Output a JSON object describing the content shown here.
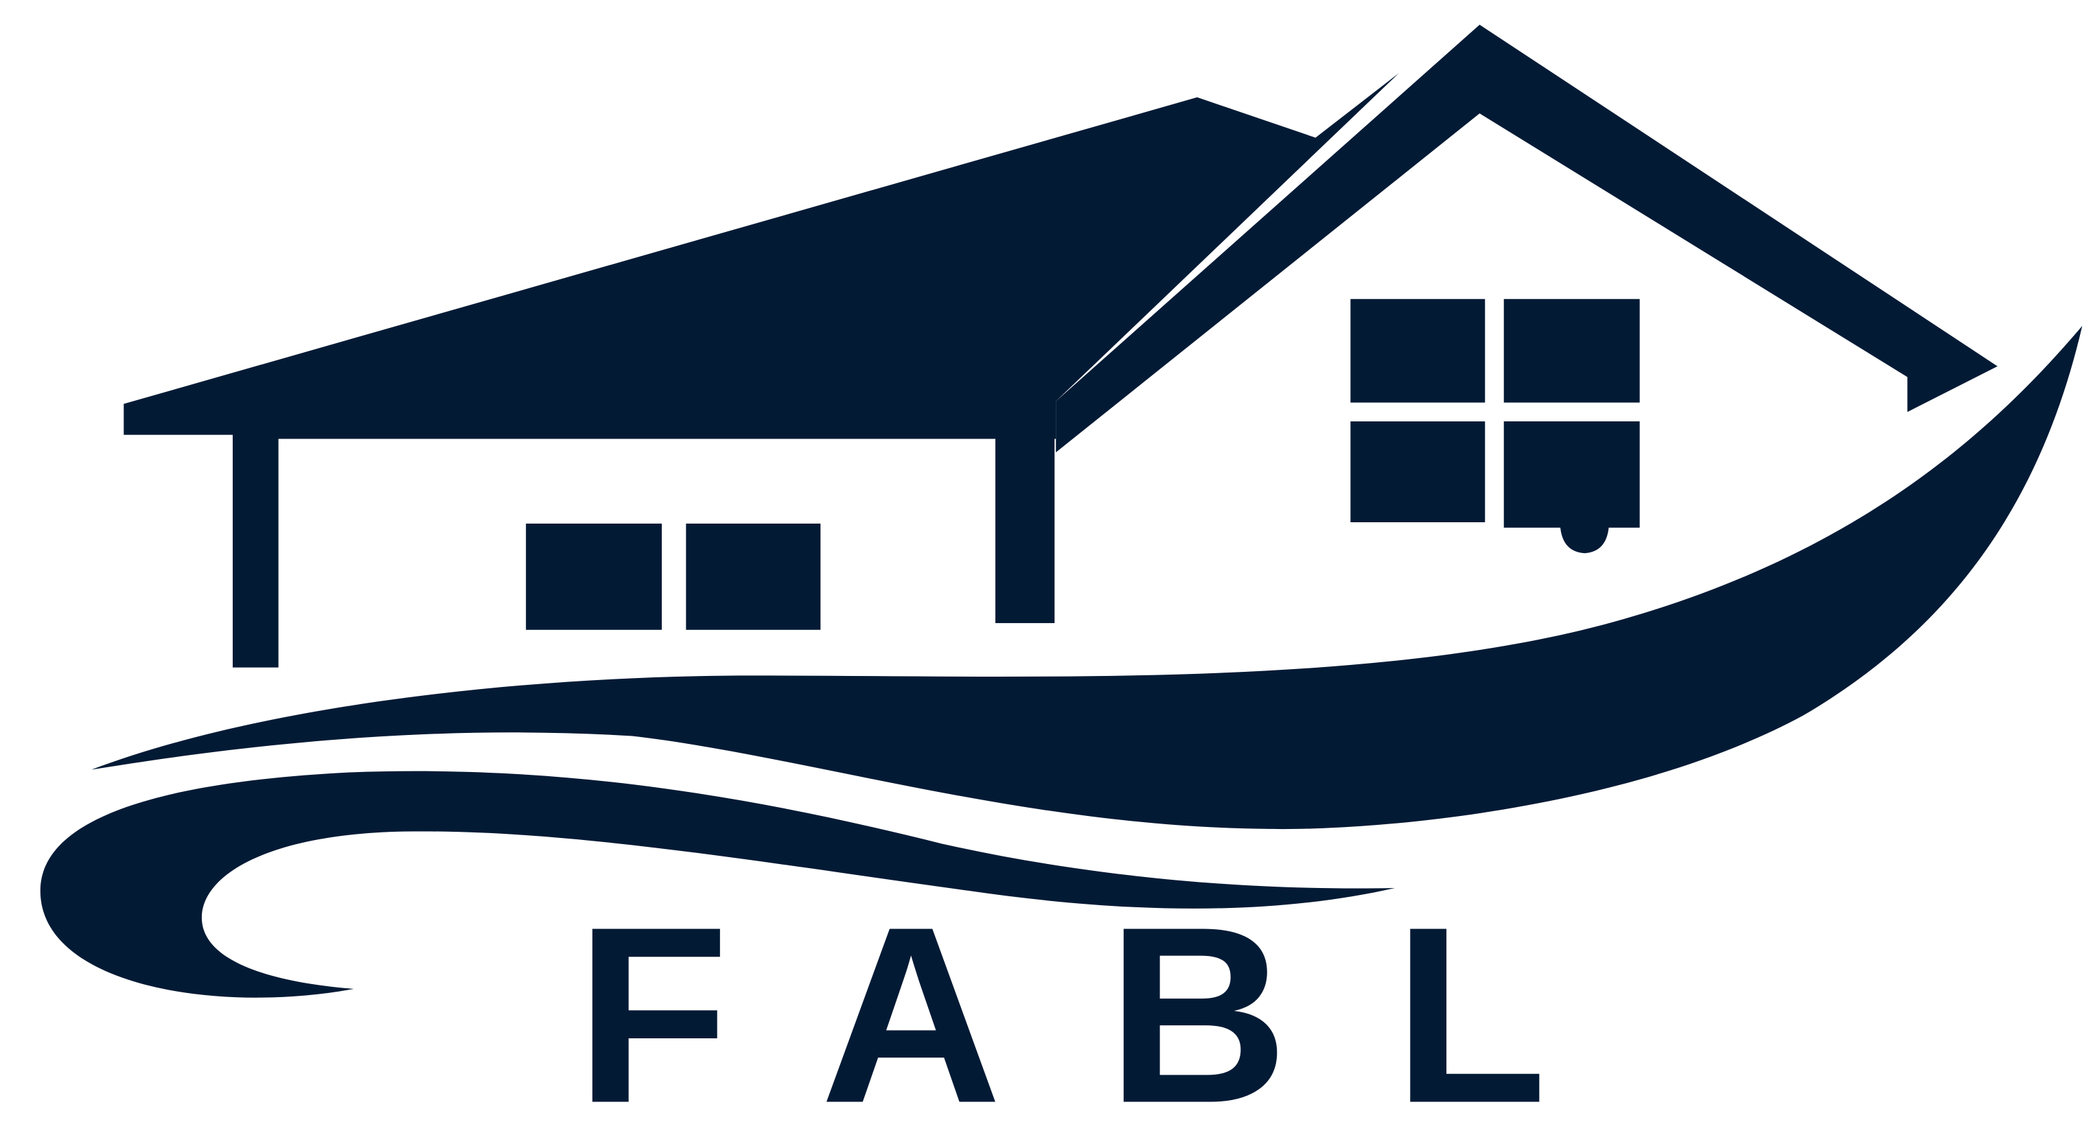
{
  "logo": {
    "wordmark": "FABL",
    "icon": "house-with-swoosh-icon",
    "colors": {
      "brand": "#031a35",
      "background": "#ffffff"
    }
  }
}
